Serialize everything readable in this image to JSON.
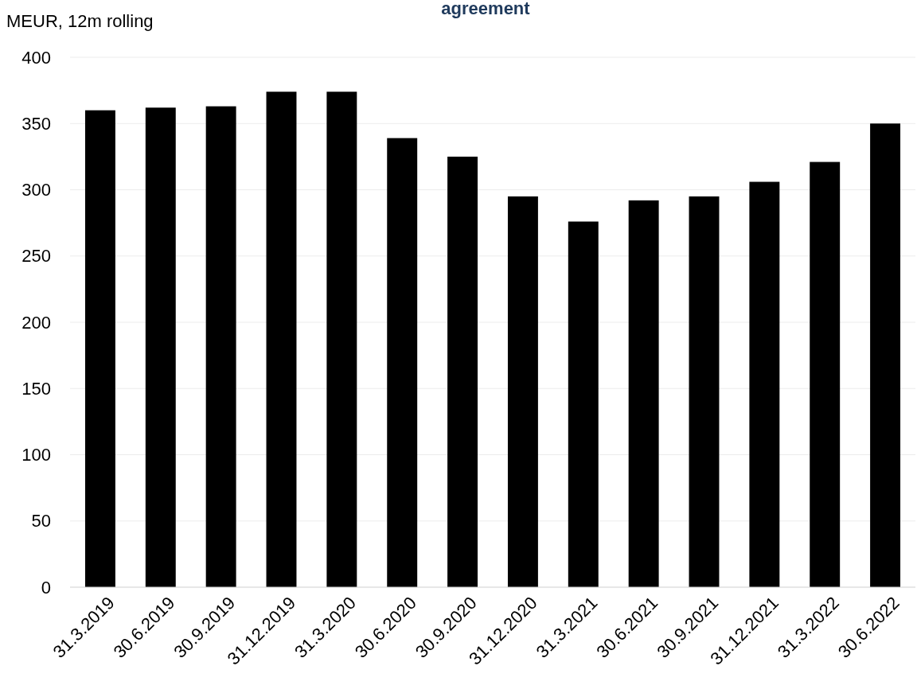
{
  "chart_data": {
    "type": "bar",
    "title": "agreement",
    "ylabel": "MEUR, 12m rolling",
    "categories": [
      "31.3.2019",
      "30.6.2019",
      "30.9.2019",
      "31.12.2019",
      "31.3.2020",
      "30.6.2020",
      "30.9.2020",
      "31.12.2020",
      "31.3.2021",
      "30.6.2021",
      "30.9.2021",
      "31.12.2021",
      "31.3.2022",
      "30.6.2022"
    ],
    "values": [
      360,
      362,
      363,
      374,
      374,
      339,
      325,
      295,
      276,
      292,
      295,
      306,
      321,
      350
    ],
    "color": "#000000",
    "ylim": [
      0,
      400
    ],
    "yticks": [
      0,
      50,
      100,
      150,
      200,
      250,
      300,
      350,
      400
    ],
    "grid": "y"
  }
}
